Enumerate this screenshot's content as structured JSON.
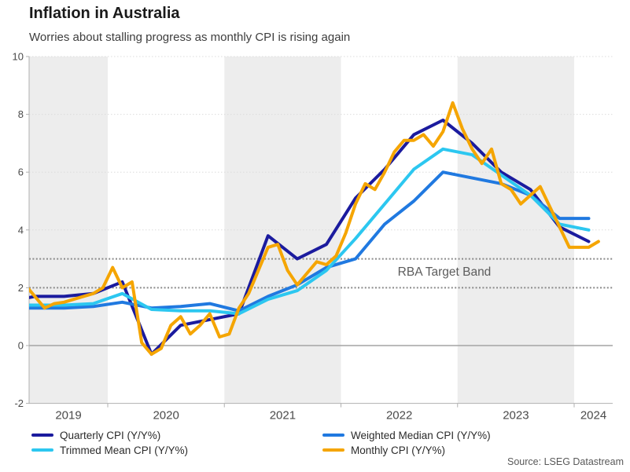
{
  "page": {
    "title": "Inflation in Australia",
    "subtitle": "Worries about stalling progress as monthly CPI is rising again",
    "source": "Source: LSEG Datastream"
  },
  "chart_data": {
    "type": "line",
    "title": "Inflation in Australia",
    "subtitle": "Worries about stalling progress as monthly CPI is rising again",
    "source": "Source: LSEG Datastream",
    "ylabel": "",
    "xlabel": "",
    "ylim": [
      -2,
      10
    ],
    "y_ticks": [
      10,
      8,
      6,
      4,
      2,
      0,
      -2
    ],
    "grid_values": [
      10,
      8,
      6,
      4
    ],
    "zero_line_value": 0,
    "x_year_labels": [
      "2019",
      "2020",
      "2021",
      "2022",
      "2023",
      "2024"
    ],
    "x_tick_years": [
      2020,
      2021,
      2022,
      2023,
      2024
    ],
    "x_range_years": [
      2019.326,
      2024.33
    ],
    "shaded_years": [
      2019,
      2021,
      2023
    ],
    "band_color": "#ededed",
    "grid_color": "#dcdcdc",
    "axis_color": "#b0b0b0",
    "zero_line_color": "#a3a3a3",
    "tick_label_color": "#4a4a4a",
    "rba_band": {
      "label": "RBA Target Band",
      "low": 2,
      "high": 3,
      "line_color": "#8a8a8a"
    },
    "series": [
      {
        "name": "Quarterly CPI (Y/Y%)",
        "color": "#1b1b9e",
        "cadence": "quarterly",
        "start_year": 2019,
        "start_period": 1,
        "values": [
          1.5,
          1.7,
          1.7,
          1.8,
          2.2,
          -0.3,
          0.7,
          0.9,
          1.1,
          3.8,
          3.0,
          3.5,
          5.1,
          6.1,
          7.3,
          7.8,
          7.0,
          6.0,
          5.4,
          4.1,
          3.6
        ]
      },
      {
        "name": "Weighted Median CPI (Y/Y%)",
        "color": "#2079e0",
        "cadence": "quarterly",
        "start_year": 2019,
        "start_period": 1,
        "values": [
          1.3,
          1.3,
          1.3,
          1.35,
          1.5,
          1.3,
          1.35,
          1.45,
          1.2,
          1.7,
          2.1,
          2.7,
          3.0,
          4.2,
          5.0,
          6.0,
          5.8,
          5.6,
          5.2,
          4.4,
          4.4
        ]
      },
      {
        "name": "Trimmed Mean CPI (Y/Y%)",
        "color": "#2cc7f0",
        "cadence": "quarterly",
        "start_year": 2019,
        "start_period": 1,
        "values": [
          1.4,
          1.4,
          1.4,
          1.45,
          1.8,
          1.25,
          1.2,
          1.2,
          1.1,
          1.6,
          1.9,
          2.6,
          3.7,
          4.9,
          6.1,
          6.8,
          6.6,
          5.9,
          5.2,
          4.2,
          4.0
        ]
      },
      {
        "name": "Monthly CPI (Y/Y%)",
        "color": "#f5a500",
        "cadence": "monthly",
        "start_year": 2019,
        "start_period": 4,
        "values": [
          2.1,
          1.7,
          1.3,
          1.45,
          1.5,
          1.6,
          1.7,
          1.8,
          2.0,
          2.7,
          2.0,
          2.2,
          0.1,
          -0.3,
          -0.1,
          0.7,
          1.0,
          0.4,
          0.7,
          1.1,
          0.3,
          0.4,
          1.3,
          1.8,
          2.6,
          3.4,
          3.5,
          2.6,
          2.1,
          2.5,
          2.9,
          2.8,
          3.1,
          3.9,
          4.9,
          5.6,
          5.4,
          6.0,
          6.7,
          7.1,
          7.1,
          7.3,
          6.9,
          7.4,
          8.4,
          7.5,
          6.8,
          6.3,
          6.8,
          5.6,
          5.4,
          4.9,
          5.2,
          5.5,
          4.8,
          4.1,
          3.4,
          3.4,
          3.4,
          3.6
        ]
      }
    ],
    "legend_position": "bottom-left-two-columns"
  }
}
